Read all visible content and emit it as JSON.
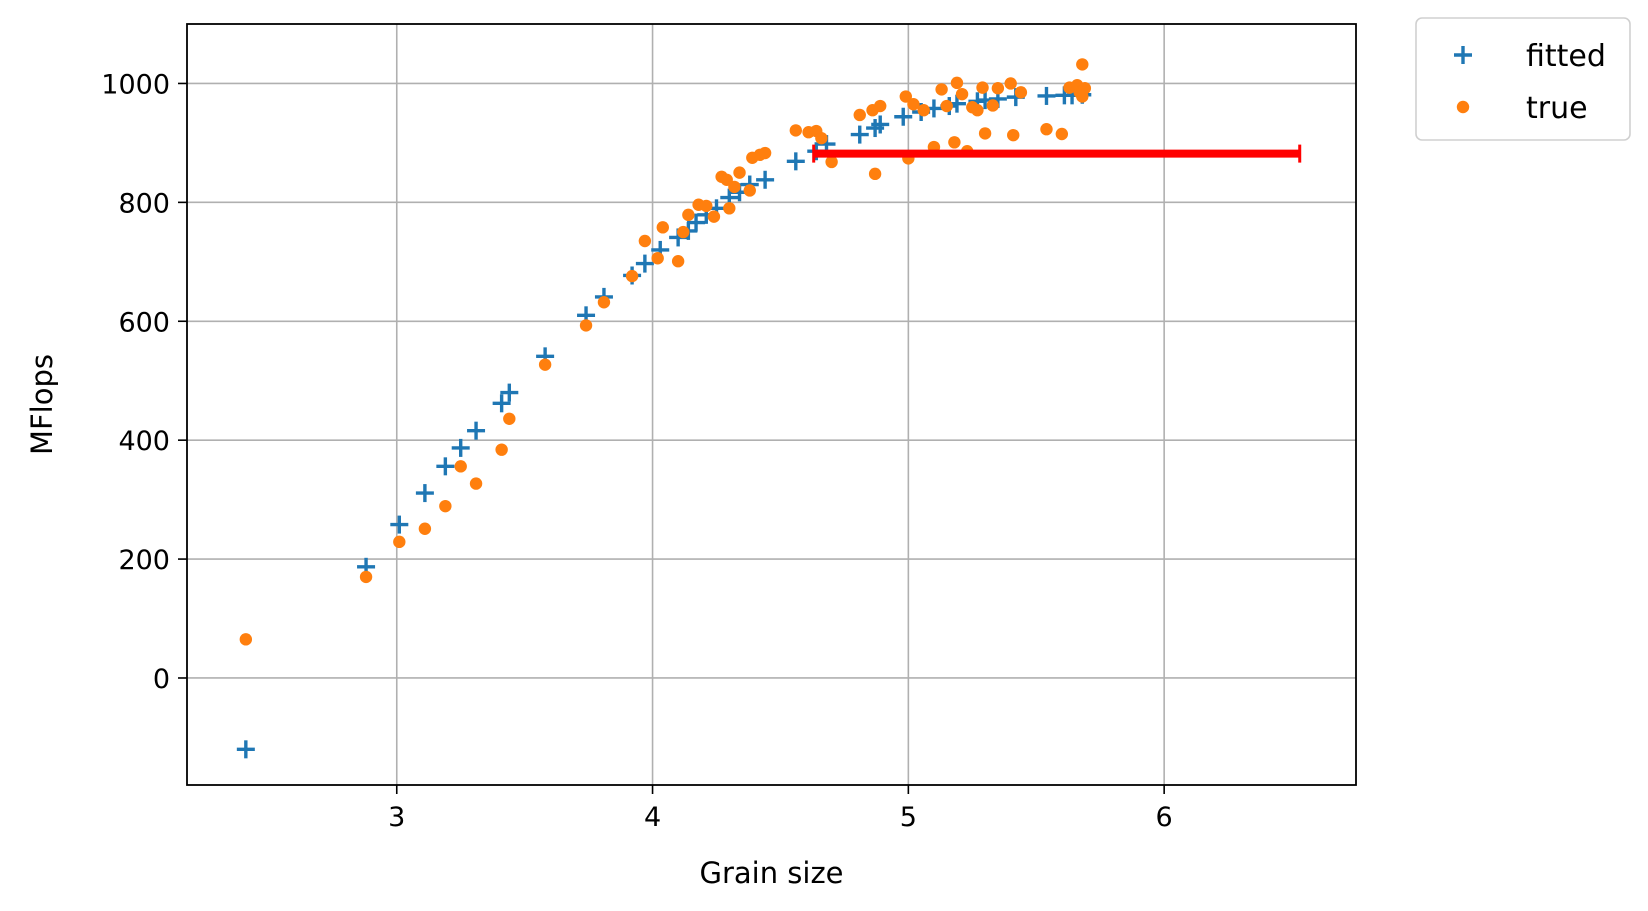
{
  "chart_data": {
    "type": "scatter",
    "title": "",
    "xlabel": "Grain size",
    "ylabel": "MFlops",
    "xlim": [
      2.18,
      6.75
    ],
    "ylim": [
      -180,
      1100
    ],
    "x_ticks": [
      3,
      4,
      5,
      6
    ],
    "y_ticks": [
      0,
      200,
      400,
      600,
      800,
      1000
    ],
    "grid": true,
    "legend": "outside-top-right",
    "colors": {
      "fitted": "#1f77b4",
      "true": "#ff7f0e",
      "bar": "#ff0000"
    },
    "series": [
      {
        "name": "fitted",
        "marker": "plus",
        "points": [
          [
            2.41,
            -120
          ],
          [
            2.88,
            187
          ],
          [
            3.01,
            258
          ],
          [
            3.11,
            311
          ],
          [
            3.19,
            356
          ],
          [
            3.25,
            387
          ],
          [
            3.31,
            416
          ],
          [
            3.41,
            462
          ],
          [
            3.44,
            480
          ],
          [
            3.58,
            541
          ],
          [
            3.74,
            610
          ],
          [
            3.81,
            641
          ],
          [
            3.92,
            677
          ],
          [
            3.97,
            697
          ],
          [
            4.03,
            720
          ],
          [
            4.1,
            741
          ],
          [
            4.14,
            752
          ],
          [
            4.17,
            766
          ],
          [
            4.21,
            779
          ],
          [
            4.25,
            790
          ],
          [
            4.3,
            808
          ],
          [
            4.34,
            817
          ],
          [
            4.38,
            830
          ],
          [
            4.44,
            838
          ],
          [
            4.56,
            869
          ],
          [
            4.64,
            886
          ],
          [
            4.68,
            898
          ],
          [
            4.81,
            914
          ],
          [
            4.87,
            925
          ],
          [
            4.89,
            931
          ],
          [
            4.98,
            944
          ],
          [
            5.05,
            952
          ],
          [
            5.1,
            958
          ],
          [
            5.16,
            962
          ],
          [
            5.19,
            966
          ],
          [
            5.27,
            970
          ],
          [
            5.3,
            972
          ],
          [
            5.35,
            974
          ],
          [
            5.42,
            977
          ],
          [
            5.54,
            979
          ],
          [
            5.61,
            980
          ],
          [
            5.64,
            980
          ],
          [
            5.68,
            981
          ]
        ]
      },
      {
        "name": "true",
        "marker": "dot",
        "points": [
          [
            2.41,
            65
          ],
          [
            2.88,
            170
          ],
          [
            3.01,
            229
          ],
          [
            3.11,
            251
          ],
          [
            3.19,
            289
          ],
          [
            3.25,
            356
          ],
          [
            3.31,
            327
          ],
          [
            3.41,
            384
          ],
          [
            3.44,
            436
          ],
          [
            3.58,
            527
          ],
          [
            3.74,
            593
          ],
          [
            3.81,
            632
          ],
          [
            3.92,
            676
          ],
          [
            3.97,
            735
          ],
          [
            4.02,
            706
          ],
          [
            4.04,
            758
          ],
          [
            4.1,
            701
          ],
          [
            4.12,
            750
          ],
          [
            4.14,
            779
          ],
          [
            4.18,
            796
          ],
          [
            4.21,
            794
          ],
          [
            4.24,
            776
          ],
          [
            4.27,
            843
          ],
          [
            4.29,
            838
          ],
          [
            4.3,
            790
          ],
          [
            4.32,
            826
          ],
          [
            4.34,
            850
          ],
          [
            4.38,
            820
          ],
          [
            4.39,
            875
          ],
          [
            4.42,
            880
          ],
          [
            4.44,
            883
          ],
          [
            4.56,
            921
          ],
          [
            4.61,
            918
          ],
          [
            4.64,
            920
          ],
          [
            4.66,
            908
          ],
          [
            4.7,
            868
          ],
          [
            4.81,
            947
          ],
          [
            4.86,
            955
          ],
          [
            4.87,
            848
          ],
          [
            4.89,
            962
          ],
          [
            4.99,
            978
          ],
          [
            5.0,
            874
          ],
          [
            5.02,
            965
          ],
          [
            5.06,
            955
          ],
          [
            5.1,
            893
          ],
          [
            5.13,
            990
          ],
          [
            5.15,
            962
          ],
          [
            5.18,
            901
          ],
          [
            5.19,
            1001
          ],
          [
            5.21,
            982
          ],
          [
            5.23,
            886
          ],
          [
            5.25,
            960
          ],
          [
            5.27,
            955
          ],
          [
            5.29,
            993
          ],
          [
            5.3,
            916
          ],
          [
            5.33,
            963
          ],
          [
            5.35,
            992
          ],
          [
            5.4,
            1000
          ],
          [
            5.41,
            913
          ],
          [
            5.44,
            985
          ],
          [
            5.54,
            923
          ],
          [
            5.6,
            915
          ],
          [
            5.63,
            993
          ],
          [
            5.66,
            997
          ],
          [
            5.67,
            985
          ],
          [
            5.68,
            1032
          ],
          [
            5.69,
            992
          ],
          [
            5.68,
            978
          ]
        ]
      }
    ],
    "annotation": {
      "type": "horizontal-bar",
      "x_start": 4.63,
      "x_end": 6.53,
      "y": 882
    }
  }
}
